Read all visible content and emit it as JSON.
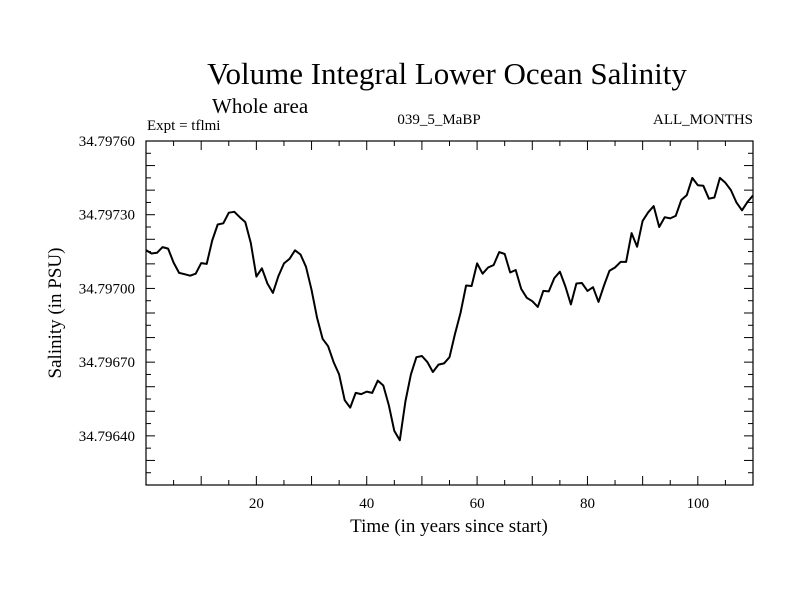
{
  "chart_data": {
    "type": "line",
    "title": "Volume Integral Lower Ocean Salinity",
    "subtitle": "Whole area",
    "expt_label": "Expt = tflmi",
    "run_label": "039_5_MaBP",
    "months_label": "ALL_MONTHS",
    "xlabel": "Time (in years since start)",
    "ylabel": "Salinity (in PSU)",
    "xlim": [
      0,
      110
    ],
    "ylim": [
      34.7962,
      34.7976
    ],
    "x_ticks": [
      20,
      40,
      60,
      80,
      100
    ],
    "y_ticks": [
      "34.79640",
      "34.79670",
      "34.79700",
      "34.79730",
      "34.79760"
    ],
    "grid": false,
    "series": [
      {
        "name": "Salinity",
        "x": [
          0,
          1,
          2,
          3,
          4,
          5,
          6,
          7,
          8,
          9,
          10,
          11,
          12,
          13,
          14,
          15,
          16,
          17,
          18,
          19,
          20,
          21,
          22,
          23,
          24,
          25,
          26,
          27,
          28,
          29,
          30,
          31,
          32,
          33,
          34,
          35,
          36,
          37,
          38,
          39,
          40,
          41,
          42,
          43,
          44,
          45,
          46,
          47,
          48,
          49,
          50,
          51,
          52,
          53,
          54,
          55,
          56,
          57,
          58,
          59,
          60,
          61,
          62,
          63,
          64,
          65,
          66,
          67,
          68,
          69,
          70,
          71,
          72,
          73,
          74,
          75,
          76,
          77,
          78,
          79,
          80,
          81,
          82,
          83,
          84,
          85,
          86,
          87,
          88,
          89,
          90,
          91,
          92,
          93,
          94,
          95,
          96,
          97,
          98,
          99,
          100,
          101,
          102,
          103,
          104,
          105,
          106,
          107,
          108,
          109,
          110
        ],
        "values": [
          34.797156,
          34.797142,
          34.797145,
          34.797168,
          34.797162,
          34.797105,
          34.797063,
          34.797058,
          34.797052,
          34.79706,
          34.797103,
          34.7971,
          34.797195,
          34.79726,
          34.797265,
          34.797308,
          34.797312,
          34.79729,
          34.79727,
          34.797185,
          34.797048,
          34.797082,
          34.79702,
          34.796982,
          34.79705,
          34.797102,
          34.79712,
          34.797155,
          34.797138,
          34.797088,
          34.796995,
          34.79688,
          34.796795,
          34.796765,
          34.7967,
          34.79665,
          34.796545,
          34.796515,
          34.796575,
          34.79657,
          34.79658,
          34.796575,
          34.796625,
          34.796605,
          34.796525,
          34.79642,
          34.796382,
          34.79654,
          34.79665,
          34.79672,
          34.796725,
          34.7967,
          34.79666,
          34.79669,
          34.796695,
          34.79672,
          34.796815,
          34.7969,
          34.797012,
          34.79701,
          34.797102,
          34.79706,
          34.797085,
          34.797095,
          34.797148,
          34.79714,
          34.797065,
          34.797075,
          34.796998,
          34.796962,
          34.796948,
          34.796925,
          34.79699,
          34.796988,
          34.797042,
          34.797068,
          34.797008,
          34.796935,
          34.79702,
          34.797022,
          34.79699,
          34.797005,
          34.796945,
          34.797012,
          34.797072,
          34.797085,
          34.797108,
          34.797108,
          34.797225,
          34.79717,
          34.797275,
          34.79731,
          34.797335,
          34.79725,
          34.79729,
          34.797285,
          34.797295,
          34.79736,
          34.79738,
          34.79745,
          34.79742,
          34.797418,
          34.797365,
          34.79737,
          34.79745,
          34.79743,
          34.7974,
          34.79735,
          34.797318,
          34.797352,
          34.797378
        ]
      }
    ]
  }
}
